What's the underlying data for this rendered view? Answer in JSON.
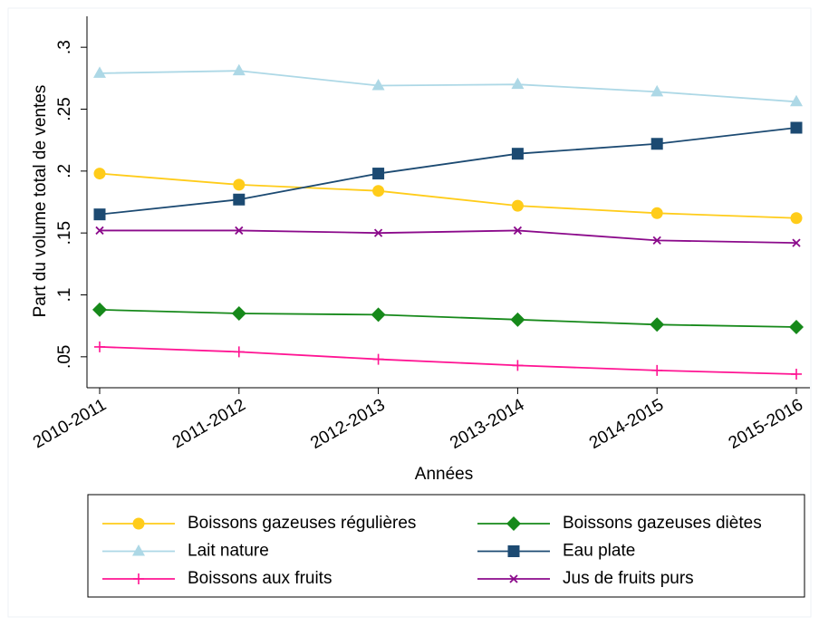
{
  "chart_data": {
    "type": "line",
    "x_label": "Années",
    "y_label": "Part du volume total de ventes",
    "categories": [
      "2010-2011",
      "2011-2012",
      "2012-2013",
      "2013-2014",
      "2014-2015",
      "2015-2016"
    ],
    "ylim": [
      0.025,
      0.325
    ],
    "yticks": [
      {
        "value": 0.05,
        "label": ".05"
      },
      {
        "value": 0.1,
        "label": ".1"
      },
      {
        "value": 0.15,
        "label": ".15"
      },
      {
        "value": 0.2,
        "label": ".2"
      },
      {
        "value": 0.25,
        "label": ".25"
      },
      {
        "value": 0.3,
        "label": ".3"
      }
    ],
    "grid": false,
    "legend": "bottom",
    "series": [
      {
        "name": "Boissons gazeuses régulières",
        "color": "#ffcc1a",
        "marker": "circle",
        "values": [
          0.198,
          0.189,
          0.184,
          0.172,
          0.166,
          0.162
        ]
      },
      {
        "name": "Boissons gazeuses diètes",
        "color": "#16891a",
        "marker": "diamond",
        "values": [
          0.088,
          0.085,
          0.084,
          0.08,
          0.076,
          0.074
        ]
      },
      {
        "name": "Lait nature",
        "color": "#add8e6",
        "marker": "triangle",
        "values": [
          0.279,
          0.281,
          0.269,
          0.27,
          0.264,
          0.256
        ]
      },
      {
        "name": "Eau plate",
        "color": "#1c4a72",
        "marker": "square",
        "values": [
          0.165,
          0.177,
          0.198,
          0.214,
          0.222,
          0.235
        ]
      },
      {
        "name": "Boissons aux fruits",
        "color": "#ff1493",
        "marker": "plus",
        "values": [
          0.058,
          0.054,
          0.048,
          0.043,
          0.039,
          0.036
        ]
      },
      {
        "name": "Jus de fruits purs",
        "color": "#8b0a8b",
        "marker": "x",
        "values": [
          0.152,
          0.152,
          0.15,
          0.152,
          0.144,
          0.142
        ]
      }
    ]
  }
}
